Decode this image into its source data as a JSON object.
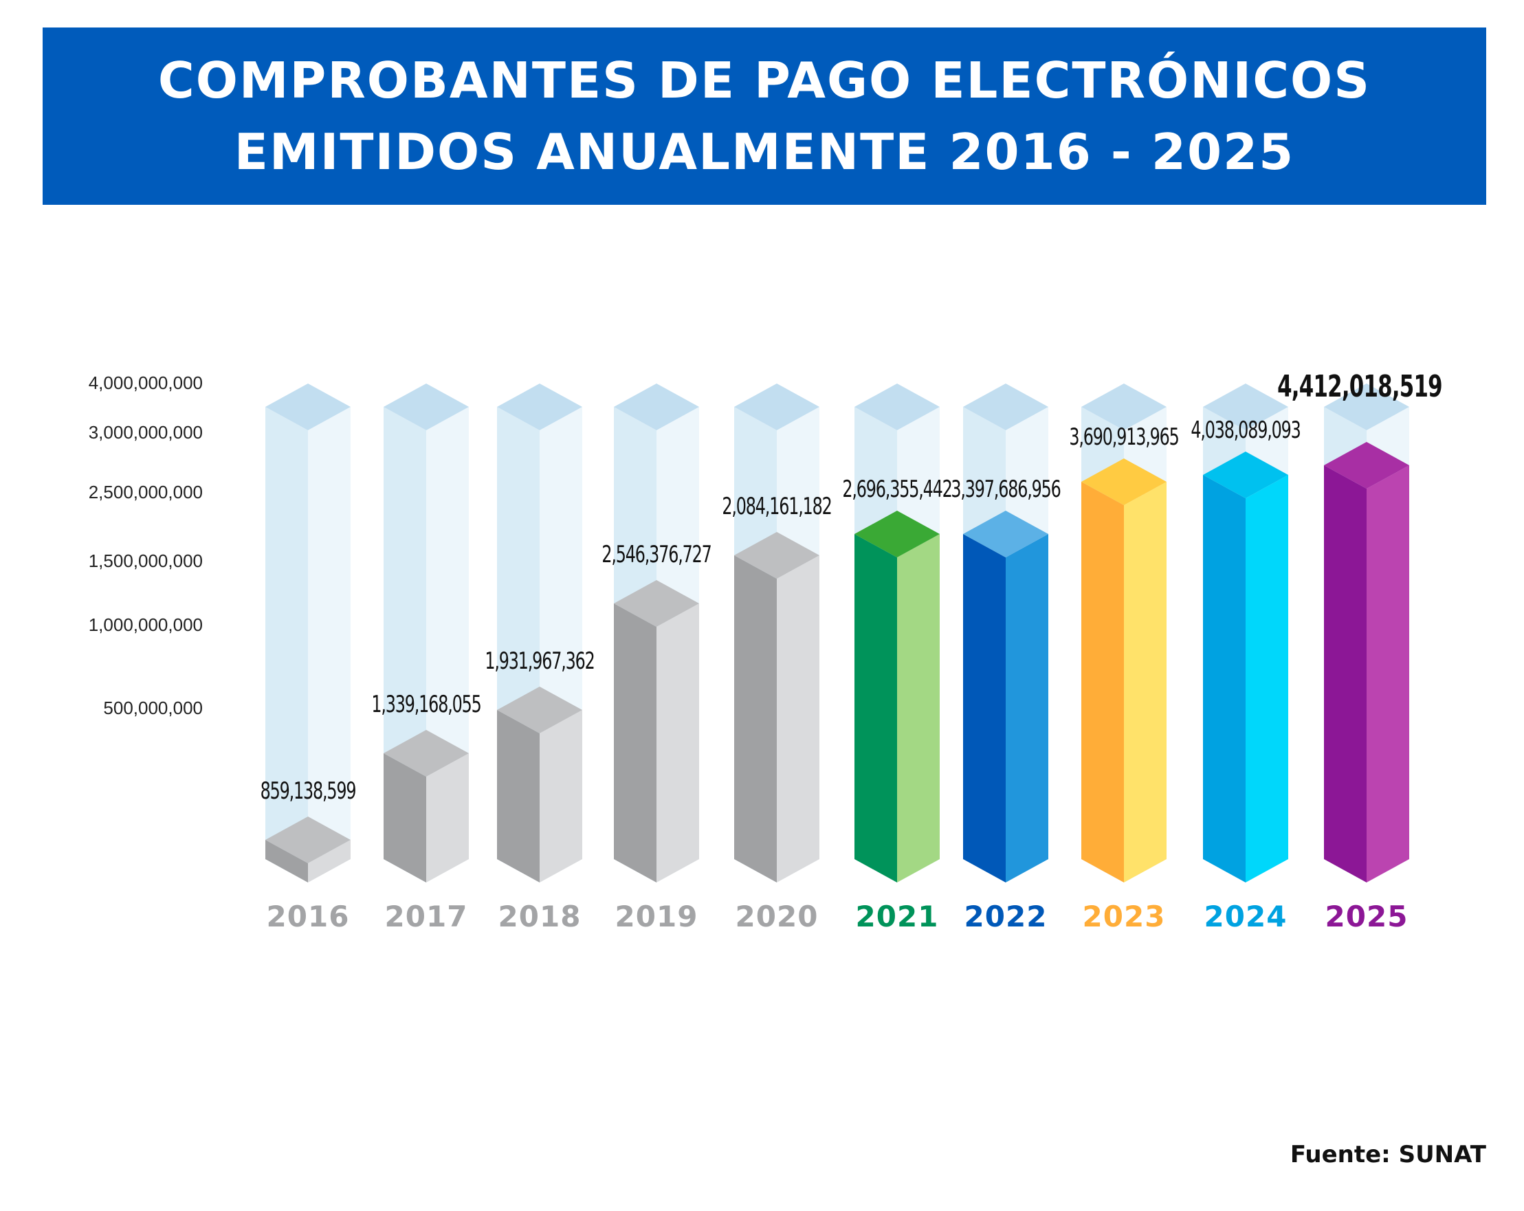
{
  "header": {
    "title_line1": "COMPROBANTES DE PAGO ELECTRÓNICOS",
    "title_line2": "EMITIDOS ANUALMENTE 2016 - 2025"
  },
  "footer": {
    "source": "Fuente: SUNAT"
  },
  "chart_data": {
    "type": "bar",
    "title": "COMPROBANTES DE PAGO ELECTRÓNICOS EMITIDOS ANUALMENTE 2016 - 2025",
    "xlabel": "",
    "ylabel": "",
    "categories": [
      "2016",
      "2017",
      "2018",
      "2019",
      "2020",
      "2021",
      "2022",
      "2023",
      "2024",
      "2025"
    ],
    "values": [
      859138599,
      1339168055,
      1931967362,
      2546376727,
      2084161182,
      2696355442,
      3397686956,
      3690913965,
      4038089093,
      4412018519
    ],
    "value_labels": [
      "859,138,599",
      "1,339,168,055",
      "1,931,967,362",
      "2,546,376,727",
      "2,084,161,182",
      "2,696,355,442",
      "3,397,686,956",
      "3,690,913,965",
      "4,038,089,093",
      "4,412,018,519"
    ],
    "y_tick_labels": [
      "4,000,000,000",
      "3,000,000,000",
      "2,500,000,000",
      "1,500,000,000",
      "1,000,000,000",
      "500,000,000"
    ],
    "y_tick_values": [
      4000000000,
      3000000000,
      2500000000,
      1500000000,
      1000000000,
      500000000
    ],
    "highlight_index": 9,
    "bar_colors": [
      {
        "front": "#a0a1a3",
        "side": "#dadbdd",
        "top": "#bebfc1",
        "label": "#a3a4a6"
      },
      {
        "front": "#a0a1a3",
        "side": "#dadbdd",
        "top": "#bebfc1",
        "label": "#a3a4a6"
      },
      {
        "front": "#a0a1a3",
        "side": "#dadbdd",
        "top": "#bebfc1",
        "label": "#a3a4a6"
      },
      {
        "front": "#a0a1a3",
        "side": "#dadbdd",
        "top": "#bebfc1",
        "label": "#a3a4a6"
      },
      {
        "front": "#a0a1a3",
        "side": "#dadbdd",
        "top": "#bebfc1",
        "label": "#a3a4a6"
      },
      {
        "front": "#00935a",
        "side": "#a3d884",
        "top": "#3aa935",
        "label": "#00935a"
      },
      {
        "front": "#0058b8",
        "side": "#2196dc",
        "top": "#5cb1e6",
        "label": "#0058b8"
      },
      {
        "front": "#ffad38",
        "side": "#ffe26a",
        "top": "#ffcb42",
        "label": "#ffad38"
      },
      {
        "front": "#00a2e1",
        "side": "#00d7fb",
        "top": "#00c1ef",
        "label": "#00a2e1"
      },
      {
        "front": "#8c1796",
        "side": "#bb44b0",
        "top": "#a82fa4",
        "label": "#8c1796"
      }
    ],
    "ghost_colors": {
      "front": "#d9ecf6",
      "side": "#edf6fb",
      "top": "#c2def0"
    }
  }
}
